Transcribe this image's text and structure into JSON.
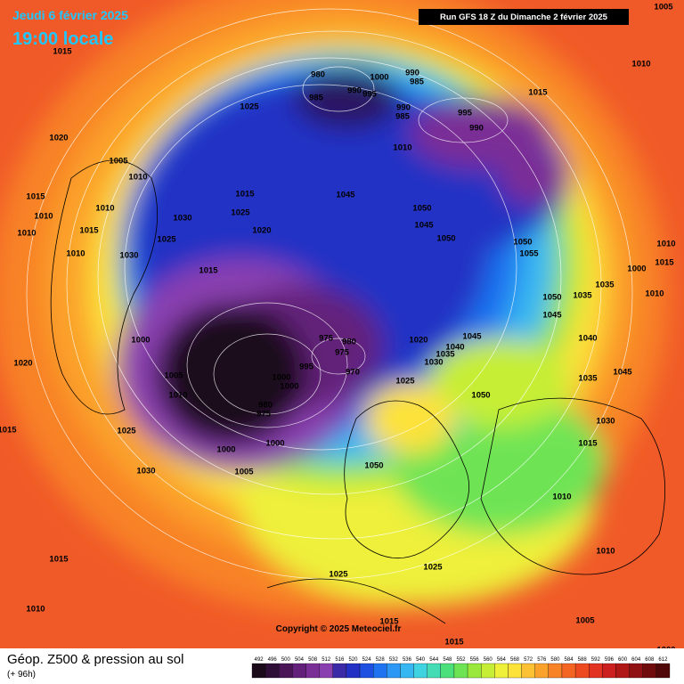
{
  "header": {
    "date": "Jeudi 6 février 2025",
    "time": "19:00 locale",
    "run": "Run GFS 18 Z du Dimanche 2 février 2025"
  },
  "map": {
    "copyright": "Copyright © 2025 Meteociel.fr",
    "isobar_labels": [
      1015,
      1025,
      980,
      985,
      990,
      995,
      1000,
      990,
      985,
      990,
      985,
      995,
      990,
      1015,
      1010,
      1005,
      1020,
      1005,
      1010,
      1010,
      1015,
      1015,
      1010,
      1010,
      1030,
      1025,
      1045,
      1050,
      1010,
      1015,
      1020,
      1045,
      1050,
      1050,
      1025,
      1055,
      1010,
      1015,
      1010,
      1030,
      1000,
      1015,
      1035,
      1050,
      1035,
      1010,
      1045,
      1000,
      975,
      980,
      975,
      1020,
      1045,
      1040,
      1040,
      1035,
      1030,
      995,
      970,
      1000,
      1000,
      1025,
      1035,
      1045,
      1020,
      1005,
      1010,
      1050,
      980,
      975,
      1030,
      1025,
      1015,
      1000,
      1000,
      1015,
      1005,
      1030,
      1050,
      1010,
      1010,
      1015,
      1025,
      1025,
      1010,
      1005,
      1015,
      1015,
      1000
    ]
  },
  "footer": {
    "title": "Géop. Z500 & pression au sol",
    "lead": "(+ 96h)",
    "colorbar": {
      "labels": [
        492,
        496,
        500,
        504,
        508,
        512,
        516,
        520,
        524,
        528,
        532,
        536,
        540,
        544,
        548,
        552,
        556,
        560,
        564,
        568,
        572,
        576,
        580,
        584,
        588,
        592,
        596,
        600,
        604,
        608,
        612
      ],
      "colors": [
        "#1a0a1a",
        "#2e0d36",
        "#4a1456",
        "#63207a",
        "#7a2f96",
        "#8a3fb0",
        "#3a2aa8",
        "#2230c4",
        "#1d4fe0",
        "#1f73f0",
        "#2c97f5",
        "#37b7f2",
        "#3fd2e0",
        "#44dcb4",
        "#4ce07c",
        "#6ee454",
        "#9ae83c",
        "#c6ee36",
        "#eef03a",
        "#fde23a",
        "#fdc233",
        "#fba22c",
        "#f88226",
        "#f46422",
        "#ee4a22",
        "#e23222",
        "#cc2020",
        "#b01818",
        "#901212",
        "#700c0c",
        "#500808"
      ]
    }
  }
}
